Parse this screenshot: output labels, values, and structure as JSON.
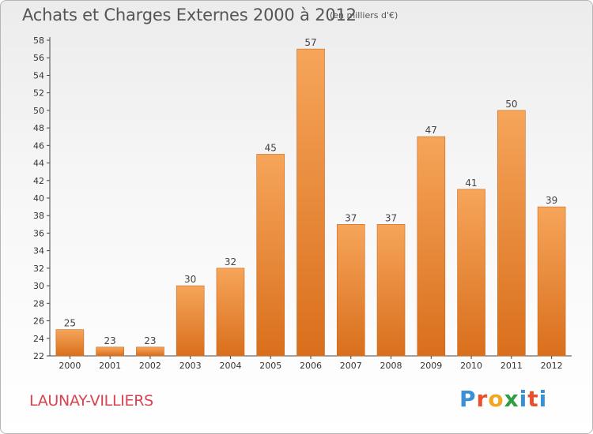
{
  "title": "Achats et Charges Externes 2000 à 2012",
  "unit_note": "(en milliers d'€)",
  "city": "LAUNAY-VILLIERS",
  "logo": "Proxiti",
  "colors": {
    "bar_top": "#f6a55a",
    "bar_bottom": "#d96f1c",
    "city": "#d9434f",
    "title": "#555555"
  },
  "chart_data": {
    "type": "bar",
    "title": "Achats et Charges Externes 2000 à 2012",
    "subtitle": "(en milliers d'€)",
    "xlabel": "",
    "ylabel": "",
    "categories": [
      "2000",
      "2001",
      "2002",
      "2003",
      "2004",
      "2005",
      "2006",
      "2007",
      "2008",
      "2009",
      "2010",
      "2011",
      "2012"
    ],
    "values": [
      25,
      23,
      23,
      30,
      32,
      45,
      57,
      37,
      37,
      47,
      41,
      50,
      39
    ],
    "ylim": [
      22,
      58
    ],
    "yticks": [
      22,
      24,
      26,
      28,
      30,
      32,
      34,
      36,
      38,
      40,
      42,
      44,
      46,
      48,
      50,
      52,
      54,
      56,
      58
    ],
    "grid": false,
    "legend": "none",
    "data_labels": true
  }
}
